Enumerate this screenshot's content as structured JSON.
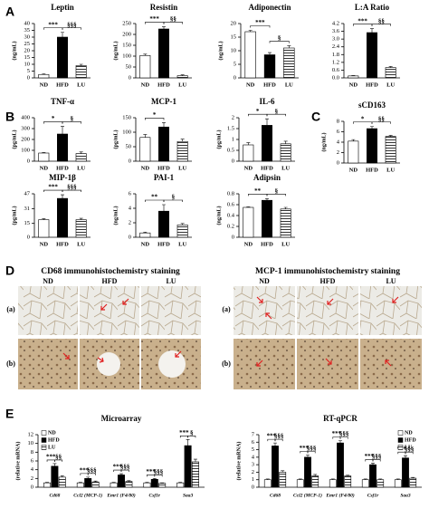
{
  "panel_labels": {
    "a": "A",
    "b": "B",
    "c": "C",
    "d": "D",
    "e": "E"
  },
  "chart_data": [
    {
      "type": "bar",
      "title": "Leptin",
      "ylabel": "(ng/mL)",
      "categories": [
        "ND",
        "HFD",
        "LU"
      ],
      "values": [
        2.5,
        30,
        9
      ],
      "errors": [
        0.5,
        3.5,
        1
      ],
      "colors": [
        "#ffffff",
        "#000000",
        "#ffffff"
      ],
      "hatch": [
        false,
        false,
        true
      ],
      "ylim": [
        0,
        40
      ],
      "yticks": [
        0,
        5,
        10,
        15,
        20,
        25,
        30,
        35,
        40
      ],
      "sig_vs_nd": "***",
      "sig_vs_hfd": "§§§"
    },
    {
      "type": "bar",
      "title": "Resistin",
      "ylabel": "(ng/mL)",
      "categories": [
        "ND",
        "HFD",
        "LU"
      ],
      "values": [
        103,
        225,
        10
      ],
      "errors": [
        6,
        10,
        4
      ],
      "colors": [
        "#ffffff",
        "#000000",
        "#ffffff"
      ],
      "hatch": [
        false,
        false,
        true
      ],
      "ylim": [
        0,
        250
      ],
      "yticks": [
        0,
        50,
        100,
        150,
        200,
        250
      ],
      "sig_vs_nd": "***",
      "sig_vs_hfd": "§§"
    },
    {
      "type": "bar",
      "title": "Adiponectin",
      "ylabel": "(ng/mL)",
      "categories": [
        "ND",
        "HFD",
        "LU"
      ],
      "values": [
        17,
        8.5,
        11
      ],
      "errors": [
        0.5,
        0.8,
        0.8
      ],
      "colors": [
        "#ffffff",
        "#000000",
        "#ffffff"
      ],
      "hatch": [
        false,
        false,
        true
      ],
      "ylim": [
        0,
        20
      ],
      "yticks": [
        0,
        5,
        10,
        15,
        20
      ],
      "sig_vs_nd": "***",
      "sig_vs_hfd": "§"
    },
    {
      "type": "bar",
      "title": "L:A Ratio",
      "categories": [
        "ND",
        "HFD",
        "LU"
      ],
      "values": [
        0.15,
        3.5,
        0.8
      ],
      "errors": [
        0.03,
        0.3,
        0.08
      ],
      "colors": [
        "#ffffff",
        "#000000",
        "#ffffff"
      ],
      "hatch": [
        false,
        false,
        true
      ],
      "ylim": [
        0,
        4.2
      ],
      "yticks": [
        {
          "value": 0,
          "label": "0.0"
        },
        0.6,
        1.2,
        1.8,
        2.4,
        {
          "value": 3,
          "label": "3.0"
        },
        3.6,
        4.2
      ],
      "sig_vs_nd": "***",
      "sig_vs_hfd": "§§"
    },
    {
      "type": "bar",
      "title": "TNF-α",
      "ylabel": "(pg/mL)",
      "categories": [
        "ND",
        "HFD",
        "LU"
      ],
      "values": [
        75,
        250,
        70
      ],
      "errors": [
        5,
        70,
        15
      ],
      "colors": [
        "#ffffff",
        "#000000",
        "#ffffff"
      ],
      "hatch": [
        false,
        false,
        true
      ],
      "ylim": [
        0,
        400
      ],
      "yticks": [
        0,
        100,
        200,
        300,
        400
      ],
      "sig_vs_nd": "*",
      "sig_vs_hfd": "§"
    },
    {
      "type": "bar",
      "title": "MCP-1",
      "ylabel": "(pg/mL)",
      "categories": [
        "ND",
        "HFD",
        "LU"
      ],
      "values": [
        82,
        118,
        68
      ],
      "errors": [
        10,
        15,
        8
      ],
      "colors": [
        "#ffffff",
        "#000000",
        "#ffffff"
      ],
      "hatch": [
        false,
        false,
        true
      ],
      "ylim": [
        0,
        150
      ],
      "yticks": [
        0,
        50,
        100,
        150
      ],
      "sig_vs_nd": "*"
    },
    {
      "type": "bar",
      "title": "IL-6",
      "ylabel": "(pg/mL)",
      "categories": [
        "ND",
        "HFD",
        "LU"
      ],
      "values": [
        0.75,
        1.65,
        0.8
      ],
      "errors": [
        0.1,
        0.3,
        0.12
      ],
      "colors": [
        "#ffffff",
        "#000000",
        "#ffffff"
      ],
      "hatch": [
        false,
        false,
        true
      ],
      "ylim": [
        0,
        2
      ],
      "yticks": [
        0,
        0.5,
        1,
        1.5,
        2
      ],
      "sig_vs_nd": "*",
      "sig_vs_hfd": "§"
    },
    {
      "type": "bar",
      "title": "sCD163",
      "ylabel": "(ng/mL)",
      "categories": [
        "ND",
        "HFD",
        "LU"
      ],
      "values": [
        4.2,
        6.6,
        5.1
      ],
      "errors": [
        0.3,
        0.4,
        0.2
      ],
      "colors": [
        "#ffffff",
        "#000000",
        "#ffffff"
      ],
      "hatch": [
        false,
        false,
        true
      ],
      "ylim": [
        0,
        8
      ],
      "yticks": [
        0,
        2,
        4,
        6,
        8
      ],
      "sig_vs_nd": "*",
      "sig_vs_hfd": "§§"
    },
    {
      "type": "bar",
      "title": "MIP-1β",
      "ylabel": "(pg/mL)",
      "categories": [
        "ND",
        "HFD",
        "LU"
      ],
      "values": [
        19,
        42,
        19
      ],
      "errors": [
        1,
        4,
        1.5
      ],
      "colors": [
        "#ffffff",
        "#000000",
        "#ffffff"
      ],
      "hatch": [
        false,
        false,
        true
      ],
      "ylim": [
        0,
        47
      ],
      "yticks": [
        0,
        15,
        31,
        47
      ],
      "sig_vs_nd": "***",
      "sig_vs_hfd": "§§§"
    },
    {
      "type": "bar",
      "title": "PAI-1",
      "ylabel": "(ng/mL)",
      "categories": [
        "ND",
        "HFD",
        "LU"
      ],
      "values": [
        0.6,
        3.6,
        1.7
      ],
      "errors": [
        0.1,
        0.9,
        0.2
      ],
      "colors": [
        "#ffffff",
        "#000000",
        "#ffffff"
      ],
      "hatch": [
        false,
        false,
        true
      ],
      "ylim": [
        0,
        6
      ],
      "yticks": [
        0,
        2,
        4,
        6
      ],
      "sig_vs_nd": "**",
      "sig_vs_hfd": "§"
    },
    {
      "type": "bar",
      "title": "Adipsin",
      "ylabel": "(ng/mL)",
      "categories": [
        "ND",
        "HFD",
        "LU"
      ],
      "values": [
        0.55,
        0.68,
        0.52
      ],
      "errors": [
        0.01,
        0.03,
        0.03
      ],
      "colors": [
        "#ffffff",
        "#000000",
        "#ffffff"
      ],
      "hatch": [
        false,
        false,
        true
      ],
      "ylim": [
        0,
        0.8
      ],
      "yticks": [
        0,
        0.2,
        0.4,
        0.6,
        0.8
      ],
      "sig_vs_nd": "**",
      "sig_vs_hfd": "§"
    },
    {
      "type": "bar",
      "title": "Microarray",
      "ylabel": "(relative mRNA)",
      "legend": "upper left",
      "categories": [
        "Cd68",
        "Ccl2 (MCP-1)",
        "Emr1 (F4/80)",
        "Csf1r",
        "Saa3"
      ],
      "series": [
        {
          "name": "ND",
          "color": "#ffffff",
          "hatch": false,
          "values": [
            1,
            1,
            1,
            1,
            1
          ],
          "errors": [
            0.1,
            0.1,
            0.1,
            0.1,
            0.1
          ]
        },
        {
          "name": "HFD",
          "color": "#000000",
          "hatch": false,
          "values": [
            4.8,
            2,
            2.8,
            1.8,
            9.5
          ],
          "errors": [
            0.6,
            0.3,
            0.3,
            0.2,
            1.4
          ]
        },
        {
          "name": "LU",
          "color": "#ffffff",
          "hatch": true,
          "values": [
            2.3,
            1.2,
            1.3,
            0.9,
            5.8
          ],
          "errors": [
            0.3,
            0.2,
            0.2,
            0.1,
            0.6
          ]
        }
      ],
      "ylim": [
        0,
        12
      ],
      "yticks": [
        0,
        2,
        4,
        6,
        8,
        10,
        12
      ],
      "sig_vs_nd": [
        "***",
        "***",
        "***",
        "***",
        "***"
      ],
      "sig_vs_hfd": [
        "§§",
        "§§§",
        "§§§",
        "§§§",
        "§"
      ]
    },
    {
      "type": "bar",
      "title": "RT-qPCR",
      "ylabel": "(relative mRNA)",
      "legend": "upper right",
      "categories": [
        "Cd68",
        "Ccl2 (MCP-1)",
        "Emr1 (F4/80)",
        "Csf1r",
        "Saa3"
      ],
      "series": [
        {
          "name": "ND",
          "color": "#ffffff",
          "hatch": false,
          "values": [
            1,
            1,
            1,
            1,
            1
          ],
          "errors": [
            0.1,
            0.1,
            0.1,
            0.1,
            0.1
          ]
        },
        {
          "name": "HFD",
          "color": "#000000",
          "hatch": false,
          "values": [
            5.5,
            4,
            5.9,
            3,
            3.9
          ],
          "errors": [
            0.4,
            0.3,
            0.3,
            0.2,
            0.3
          ]
        },
        {
          "name": "LU",
          "color": "#ffffff",
          "hatch": true,
          "values": [
            2,
            1.5,
            1.5,
            1,
            1.2
          ],
          "errors": [
            0.2,
            0.2,
            0.1,
            0.1,
            0.1
          ]
        }
      ],
      "ylim": [
        0,
        7
      ],
      "yticks": [
        0,
        1,
        2,
        3,
        4,
        5,
        6,
        7
      ],
      "sig_vs_nd": [
        "***",
        "***",
        "***",
        "***",
        "***"
      ],
      "sig_vs_hfd": [
        "§§§",
        "§§§",
        "§§§",
        "§§§",
        "§§§"
      ]
    }
  ],
  "micrographs": {
    "cd68": {
      "title": "CD68 immunohistochemistry staining",
      "columns": [
        "ND",
        "HFD",
        "LU"
      ],
      "rows": [
        "(a)",
        "(b)"
      ]
    },
    "mcp1": {
      "title": "MCP-1 immunohistochemistry staining",
      "columns": [
        "ND",
        "HFD",
        "LU"
      ],
      "rows": [
        "(a)",
        "(b)"
      ]
    }
  }
}
